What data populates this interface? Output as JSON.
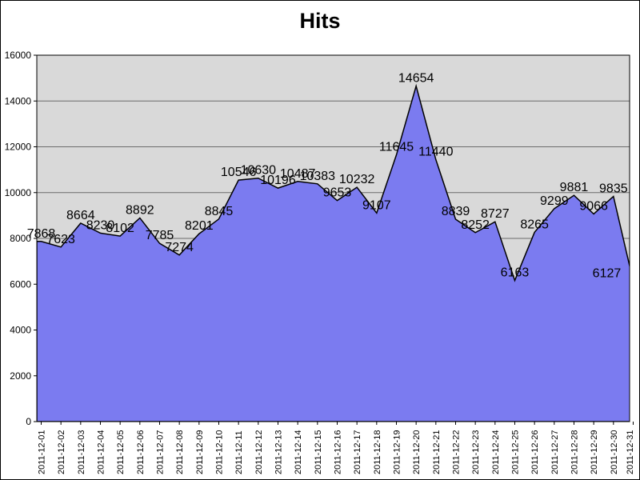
{
  "title": "Hits",
  "chart_data": {
    "type": "area",
    "title": "Hits",
    "xlabel": "",
    "ylabel": "",
    "categories": [
      "2011-12-01",
      "2011-12-02",
      "2011-12-03",
      "2011-12-04",
      "2011-12-05",
      "2011-12-06",
      "2011-12-07",
      "2011-12-08",
      "2011-12-09",
      "2011-12-10",
      "2011-12-11",
      "2011-12-12",
      "2011-12-13",
      "2011-12-14",
      "2011-12-15",
      "2011-12-16",
      "2011-12-17",
      "2011-12-18",
      "2011-12-19",
      "2011-12-20",
      "2011-12-21",
      "2011-12-22",
      "2011-12-23",
      "2011-12-24",
      "2011-12-25",
      "2011-12-26",
      "2011-12-27",
      "2011-12-28",
      "2011-12-29",
      "2011-12-30",
      "2011-12-31"
    ],
    "values": [
      7868,
      7623,
      8664,
      8230,
      8102,
      8892,
      7785,
      7274,
      8201,
      8845,
      10546,
      10630,
      10196,
      10487,
      10383,
      9653,
      10232,
      9107,
      11645,
      14654,
      11440,
      8839,
      8252,
      8727,
      6163,
      8265,
      9299,
      9881,
      9066,
      9835,
      6127
    ],
    "data_labels_visible": true,
    "ylim": [
      0,
      16000
    ],
    "yticks": [
      0,
      2000,
      4000,
      6000,
      8000,
      10000,
      12000,
      14000,
      16000
    ],
    "grid": "horizontal",
    "legend_position": "none",
    "colors": {
      "area_fill": "#7b7bf0",
      "area_outline": "#000000",
      "plot_background": "#d9d9d9",
      "plot_border": "#000000",
      "gridline": "#6b6b6b",
      "label_text": "#000000",
      "tick_text": "#000000"
    }
  }
}
